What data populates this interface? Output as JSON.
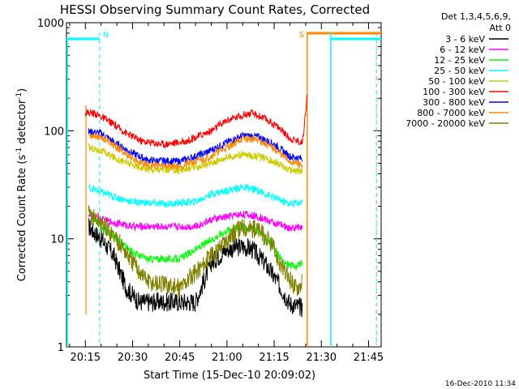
{
  "chart_data": {
    "type": "line",
    "title": "HESSI Observing Summary Count Rates, Corrected",
    "xlabel": "Start Time (15-Dec-10 20:09:02)",
    "ylabel_main": "Corrected Count Rate (s",
    "ylabel_sup1": "-1",
    "ylabel_mid": " detector",
    "ylabel_sup2": "-1",
    "ylabel_end": ")",
    "y_scale": "log",
    "ylim": [
      1,
      1000
    ],
    "xlim": [
      "20:09",
      "21:49"
    ],
    "x_ticks": [
      "20:15",
      "20:30",
      "20:45",
      "21:00",
      "21:15",
      "21:30",
      "21:45"
    ],
    "y_ticks": [
      {
        "value": 1,
        "label": "1"
      },
      {
        "value": 10,
        "label": "10"
      },
      {
        "value": 100,
        "label": "100"
      },
      {
        "value": 1000,
        "label": "1000"
      }
    ],
    "legend_title_1": "Det 1,3,4,5,6,9,",
    "legend_title_2": "Att 0",
    "legend_position": "right",
    "series": [
      {
        "name": "3 - 6 keV",
        "color": "#000000",
        "points": [
          [
            "20:16",
            13
          ],
          [
            "20:20",
            10
          ],
          [
            "20:24",
            7
          ],
          [
            "20:28",
            3.5
          ],
          [
            "20:32",
            2.6
          ],
          [
            "20:38",
            2.6
          ],
          [
            "20:44",
            2.6
          ],
          [
            "20:50",
            2.6
          ],
          [
            "20:55",
            6
          ],
          [
            "21:00",
            8
          ],
          [
            "21:05",
            8.5
          ],
          [
            "21:08",
            8
          ],
          [
            "21:12",
            6
          ],
          [
            "21:16",
            4
          ],
          [
            "21:20",
            2.5
          ],
          [
            "21:24",
            2.3
          ]
        ]
      },
      {
        "name": "6 - 12 keV",
        "color": "#ff00ff",
        "points": [
          [
            "20:16",
            17
          ],
          [
            "20:20",
            15
          ],
          [
            "20:25",
            14
          ],
          [
            "20:30",
            13
          ],
          [
            "20:40",
            13
          ],
          [
            "20:50",
            13
          ],
          [
            "20:55",
            15
          ],
          [
            "21:00",
            16
          ],
          [
            "21:05",
            17
          ],
          [
            "21:10",
            16
          ],
          [
            "21:15",
            14
          ],
          [
            "21:20",
            12.5
          ],
          [
            "21:24",
            13
          ]
        ]
      },
      {
        "name": "12 - 25 keV",
        "color": "#00ff00",
        "points": [
          [
            "20:16",
            18
          ],
          [
            "20:20",
            13
          ],
          [
            "20:25",
            10
          ],
          [
            "20:30",
            7.5
          ],
          [
            "20:35",
            6.5
          ],
          [
            "20:45",
            6.5
          ],
          [
            "20:53",
            9
          ],
          [
            "21:00",
            12
          ],
          [
            "21:05",
            13
          ],
          [
            "21:10",
            12
          ],
          [
            "21:14",
            9
          ],
          [
            "21:18",
            6
          ],
          [
            "21:22",
            5.5
          ],
          [
            "21:24",
            6
          ]
        ]
      },
      {
        "name": "25 - 50 keV",
        "color": "#00ffff",
        "points": [
          [
            "20:16",
            30
          ],
          [
            "20:20",
            27
          ],
          [
            "20:25",
            24
          ],
          [
            "20:30",
            22
          ],
          [
            "20:40",
            21
          ],
          [
            "20:50",
            22
          ],
          [
            "20:55",
            26
          ],
          [
            "21:00",
            28
          ],
          [
            "21:05",
            30
          ],
          [
            "21:10",
            28
          ],
          [
            "21:15",
            24
          ],
          [
            "21:20",
            21
          ],
          [
            "21:24",
            22
          ]
        ]
      },
      {
        "name": "50 - 100 keV",
        "color": "#cccc00",
        "points": [
          [
            "20:16",
            70
          ],
          [
            "20:20",
            65
          ],
          [
            "20:25",
            55
          ],
          [
            "20:30",
            48
          ],
          [
            "20:35",
            44
          ],
          [
            "20:45",
            43
          ],
          [
            "20:53",
            48
          ],
          [
            "21:00",
            57
          ],
          [
            "21:05",
            60
          ],
          [
            "21:10",
            58
          ],
          [
            "21:15",
            52
          ],
          [
            "21:20",
            43
          ],
          [
            "21:24",
            42
          ]
        ]
      },
      {
        "name": "100 - 300 keV",
        "color": "#ff0000",
        "points": [
          [
            "20:15",
            148
          ],
          [
            "20:18",
            145
          ],
          [
            "20:23",
            120
          ],
          [
            "20:28",
            95
          ],
          [
            "20:33",
            80
          ],
          [
            "20:40",
            75
          ],
          [
            "20:47",
            80
          ],
          [
            "20:55",
            100
          ],
          [
            "21:00",
            125
          ],
          [
            "21:05",
            140
          ],
          [
            "21:08",
            145
          ],
          [
            "21:12",
            130
          ],
          [
            "21:16",
            110
          ],
          [
            "21:20",
            85
          ],
          [
            "21:24",
            78
          ],
          [
            "21:25.5",
            220
          ]
        ]
      },
      {
        "name": "300 - 800 keV",
        "color": "#0000ff",
        "points": [
          [
            "20:16",
            98
          ],
          [
            "20:20",
            95
          ],
          [
            "20:25",
            75
          ],
          [
            "20:30",
            62
          ],
          [
            "20:35",
            53
          ],
          [
            "20:45",
            52
          ],
          [
            "20:53",
            62
          ],
          [
            "21:00",
            78
          ],
          [
            "21:05",
            90
          ],
          [
            "21:10",
            88
          ],
          [
            "21:15",
            75
          ],
          [
            "21:20",
            58
          ],
          [
            "21:24",
            55
          ]
        ]
      },
      {
        "name": "800 - 7000 keV",
        "color": "#ff8800",
        "points": [
          [
            "20:16",
            92
          ],
          [
            "20:20",
            88
          ],
          [
            "20:25",
            70
          ],
          [
            "20:30",
            55
          ],
          [
            "20:35",
            48
          ],
          [
            "20:45",
            47
          ],
          [
            "20:53",
            55
          ],
          [
            "21:00",
            70
          ],
          [
            "21:05",
            85
          ],
          [
            "21:10",
            82
          ],
          [
            "21:15",
            68
          ],
          [
            "21:20",
            52
          ],
          [
            "21:24",
            48
          ]
        ]
      },
      {
        "name": "7000 - 20000 keV",
        "color": "#808000",
        "points": [
          [
            "20:16",
            17
          ],
          [
            "20:20",
            14
          ],
          [
            "20:25",
            10
          ],
          [
            "20:30",
            6
          ],
          [
            "20:35",
            4
          ],
          [
            "20:45",
            3.5
          ],
          [
            "20:53",
            6
          ],
          [
            "21:00",
            10
          ],
          [
            "21:05",
            13
          ],
          [
            "21:10",
            12
          ],
          [
            "21:14",
            9
          ],
          [
            "21:18",
            5
          ],
          [
            "21:22",
            3.5
          ],
          [
            "21:24",
            4
          ]
        ]
      }
    ],
    "markers": [
      {
        "label": "N",
        "color": "#00ffff",
        "time": "20:19.5"
      },
      {
        "label": "S",
        "color": "#ff8800",
        "time": "21:25.5"
      }
    ],
    "stamp": "16-Dec-2010 11:34"
  }
}
